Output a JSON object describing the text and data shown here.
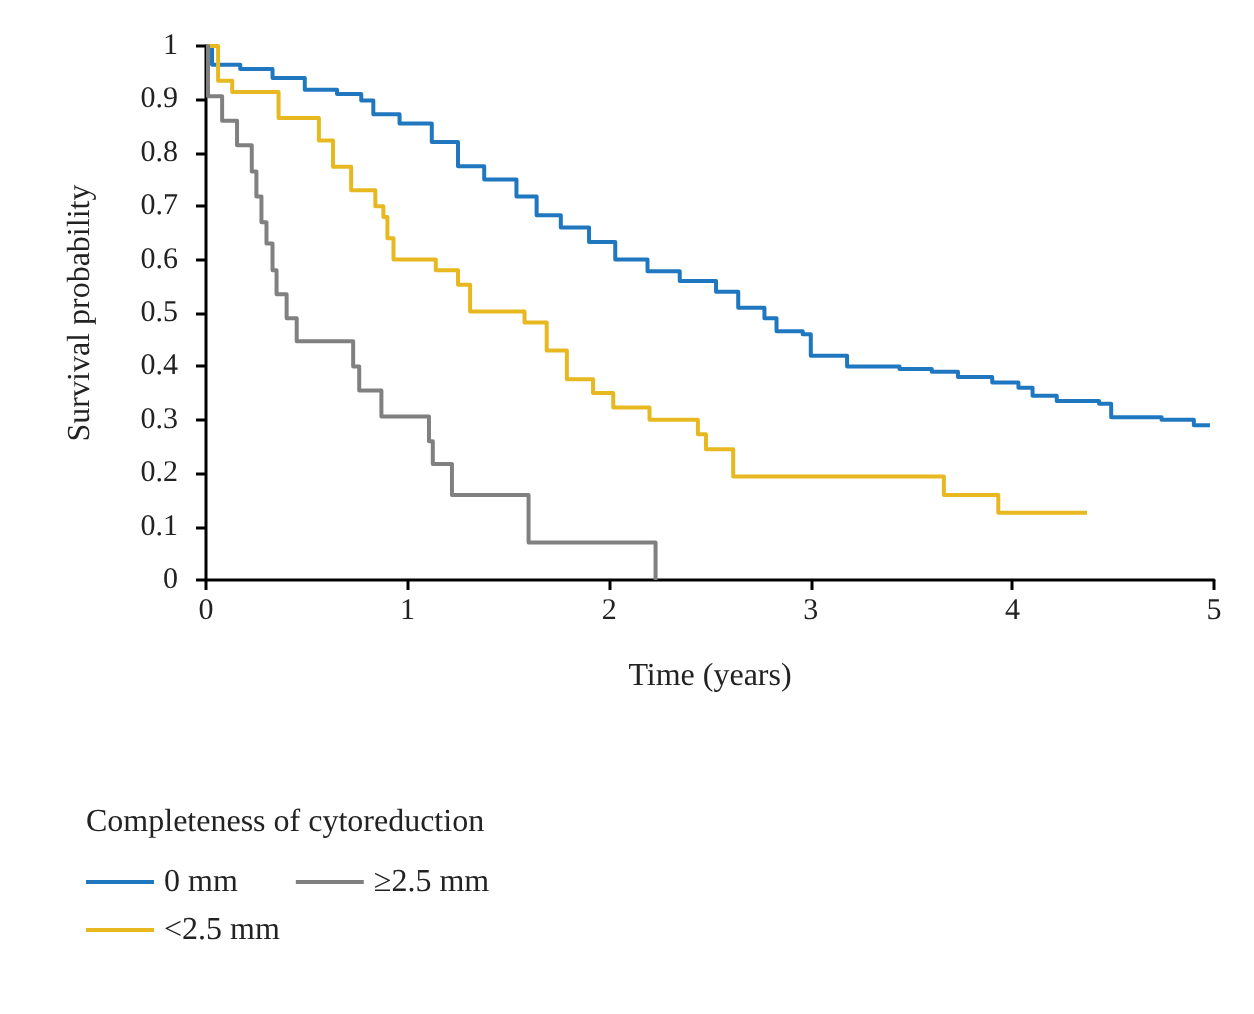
{
  "chart_data": {
    "type": "step",
    "xlabel": "Time (years)",
    "ylabel": "Survival probability",
    "legend_title": "Completeness of cytoreduction",
    "legend": "bottom left",
    "grid": false,
    "marker": "none",
    "xlim": [
      0,
      5
    ],
    "xticks": [
      0,
      1,
      2,
      3,
      4,
      5
    ],
    "ylim": [
      0,
      1
    ],
    "yticks": [
      0,
      0.1,
      0.2,
      0.3,
      0.4,
      0.5,
      0.6,
      0.7,
      0.8,
      0.9,
      1
    ],
    "series": [
      {
        "name": "0 mm",
        "color": "#1f77c0",
        "x": [
          0,
          0.03,
          0.17,
          0.33,
          0.49,
          0.65,
          0.77,
          0.83,
          0.96,
          1.12,
          1.25,
          1.38,
          1.54,
          1.64,
          1.76,
          1.9,
          2.03,
          2.19,
          2.35,
          2.53,
          2.64,
          2.77,
          2.83,
          2.96,
          3.0,
          3.18,
          3.44,
          3.6,
          3.73,
          3.9,
          4.03,
          4.1,
          4.22,
          4.43,
          4.49,
          4.74,
          4.9,
          4.98
        ],
        "values": [
          1,
          0.965,
          0.957,
          0.94,
          0.918,
          0.91,
          0.898,
          0.872,
          0.855,
          0.82,
          0.775,
          0.75,
          0.718,
          0.683,
          0.66,
          0.633,
          0.6,
          0.578,
          0.56,
          0.54,
          0.51,
          0.49,
          0.466,
          0.46,
          0.42,
          0.4,
          0.395,
          0.39,
          0.38,
          0.37,
          0.36,
          0.345,
          0.335,
          0.33,
          0.305,
          0.3,
          0.29,
          0.29
        ]
      },
      {
        "name": "<2.5 mm",
        "color": "#e8b820",
        "x": [
          0,
          0.06,
          0.13,
          0.36,
          0.56,
          0.63,
          0.72,
          0.84,
          0.88,
          0.9,
          0.93,
          1.14,
          1.25,
          1.31,
          1.58,
          1.69,
          1.79,
          1.92,
          2.02,
          2.2,
          2.44,
          2.48,
          2.615,
          3.66,
          3.93,
          4.37
        ],
        "values": [
          1,
          0.935,
          0.914,
          0.865,
          0.823,
          0.774,
          0.73,
          0.7,
          0.68,
          0.64,
          0.6,
          0.58,
          0.553,
          0.503,
          0.482,
          0.43,
          0.376,
          0.35,
          0.323,
          0.3,
          0.273,
          0.245,
          0.194,
          0.159,
          0.126,
          0.126
        ]
      },
      {
        "name": "≥2.5 mm",
        "color": "#808080",
        "x": [
          0,
          0.01,
          0.08,
          0.154,
          0.227,
          0.25,
          0.275,
          0.3,
          0.33,
          0.35,
          0.4,
          0.45,
          0.73,
          0.76,
          0.87,
          1.106,
          1.125,
          1.22,
          1.6,
          2.23
        ],
        "values": [
          1,
          0.906,
          0.86,
          0.814,
          0.765,
          0.718,
          0.67,
          0.63,
          0.58,
          0.535,
          0.49,
          0.447,
          0.4,
          0.355,
          0.306,
          0.26,
          0.217,
          0.159,
          0.07,
          0
        ]
      }
    ]
  }
}
